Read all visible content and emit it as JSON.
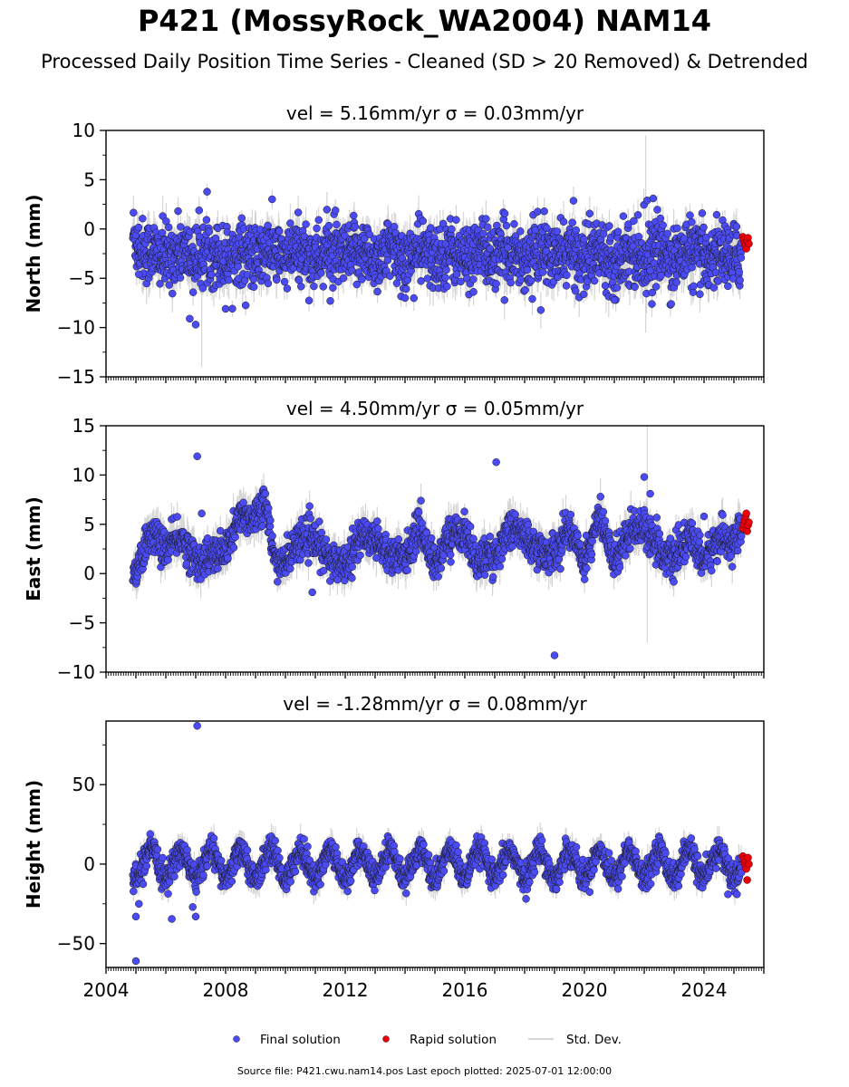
{
  "title": "P421 (MossyRock_WA2004) NAM14",
  "subtitle": "Processed Daily Position Time Series - Cleaned (SD > 20 Removed) & Detrended",
  "footer": "Source file: P421.cwu.nam14.pos  Last epoch plotted: 2025-07-01 12:00:00",
  "colors": {
    "final": "#4b4bf5",
    "rapid": "#e8000b",
    "stddev": "#c8c8c8",
    "marker_edge": "#1a1a1a"
  },
  "legend": {
    "placement": "bottom-center",
    "final_label": "Final solution",
    "rapid_label": "Rapid solution",
    "stddev_label": "Std. Dev."
  },
  "chart_data": [
    {
      "type": "scatter",
      "title": "vel = 5.16mm/yr   σ = 0.03mm/yr",
      "ylabel": "North (mm)",
      "xlim": [
        2004.0,
        2026.0
      ],
      "ylim": [
        -15,
        10
      ],
      "yticks": [
        -15,
        -10,
        -5,
        0,
        5,
        10
      ],
      "xticks": [
        2004,
        2008,
        2012,
        2016,
        2020,
        2024
      ],
      "xtick_labels_shown": false,
      "series_final": {
        "time_range": [
          2004.9,
          2025.25
        ],
        "center": -2.6,
        "spread": 1.6,
        "annual_amp": 0.4,
        "sd": 1.4
      },
      "series_rapid": {
        "time_range": [
          2025.3,
          2025.5
        ],
        "values": [
          -0.8,
          -1.1,
          -1.4,
          -1.7,
          -2.0,
          -1.2,
          -0.9,
          -1.5
        ]
      },
      "initial_offset": 2.5,
      "outliers": [
        [
          2007.0,
          -9.7
        ],
        [
          2006.8,
          -9.1
        ],
        [
          2008.0,
          -8.1
        ],
        [
          2011.5,
          -7.3
        ],
        [
          2014.0,
          -7.0
        ],
        [
          2021.0,
          -7.2
        ],
        [
          2022.9,
          -7.6
        ],
        [
          2022.1,
          2.9
        ],
        [
          2022.3,
          3.1
        ],
        [
          2021.3,
          1.3
        ],
        [
          2024.8,
          -5.8
        ],
        [
          2005.1,
          -4.6
        ]
      ],
      "big_errors": [
        [
          2022.05,
          -0.5,
          10.0
        ],
        [
          2007.2,
          -9.0,
          5.0
        ]
      ]
    },
    {
      "type": "scatter",
      "title": "vel = 4.50mm/yr   σ = 0.05mm/yr",
      "ylabel": "East (mm)",
      "xlim": [
        2004.0,
        2026.0
      ],
      "ylim": [
        -10,
        15
      ],
      "yticks": [
        -10,
        -5,
        0,
        5,
        10,
        15
      ],
      "xticks": [
        2004,
        2008,
        2012,
        2016,
        2020,
        2024
      ],
      "xtick_labels_shown": false,
      "series_final": {
        "time_range": [
          2004.9,
          2025.25
        ],
        "center": 2.8,
        "spread": 0.9,
        "annual_amp": 0.6,
        "sd": 1.3
      },
      "series_rapid": {
        "time_range": [
          2025.3,
          2025.5
        ],
        "values": [
          4.6,
          5.0,
          5.4,
          5.8,
          6.1,
          4.3,
          4.9,
          5.2
        ]
      },
      "wander": [
        [
          2004.9,
          0.5
        ],
        [
          2005.5,
          3.5
        ],
        [
          2006.5,
          3.0
        ],
        [
          2007.5,
          1.0
        ],
        [
          2008.5,
          5.0
        ],
        [
          2009.3,
          7.5
        ],
        [
          2009.6,
          1.0
        ],
        [
          2010.5,
          3.0
        ],
        [
          2011.0,
          4.0
        ],
        [
          2011.5,
          0.5
        ],
        [
          2012.5,
          3.0
        ],
        [
          2013.0,
          4.5
        ],
        [
          2013.5,
          1.0
        ],
        [
          2014.5,
          4.0
        ],
        [
          2015.0,
          1.5
        ],
        [
          2016.0,
          5.0
        ],
        [
          2016.4,
          0.5
        ],
        [
          2017.5,
          4.0
        ],
        [
          2018.0,
          4.5
        ],
        [
          2018.5,
          1.5
        ],
        [
          2019.5,
          4.0
        ],
        [
          2020.0,
          2.0
        ],
        [
          2020.5,
          5.0
        ],
        [
          2021.0,
          2.0
        ],
        [
          2022.0,
          5.5
        ],
        [
          2022.6,
          1.5
        ],
        [
          2023.5,
          3.0
        ],
        [
          2024.0,
          2.0
        ],
        [
          2025.3,
          4.5
        ]
      ],
      "outliers": [
        [
          2007.05,
          11.9
        ],
        [
          2017.05,
          11.3
        ],
        [
          2019.0,
          -8.3
        ],
        [
          2022.0,
          9.8
        ],
        [
          2022.2,
          8.1
        ],
        [
          2024.0,
          5.8
        ],
        [
          2010.9,
          -1.9
        ],
        [
          2007.2,
          6.1
        ]
      ],
      "big_errors": [
        [
          2022.1,
          4.0,
          11.0
        ]
      ]
    },
    {
      "type": "scatter",
      "title": "vel = -1.28mm/yr   σ = 0.08mm/yr",
      "ylabel": "Height (mm)",
      "xlim": [
        2004.0,
        2026.0
      ],
      "ylim": [
        -65,
        90
      ],
      "yticks": [
        -50,
        0,
        50
      ],
      "xticks": [
        2004,
        2008,
        2012,
        2016,
        2020,
        2024
      ],
      "xtick_labels": [
        "2004",
        "2008",
        "2012",
        "2016",
        "2020",
        "2024"
      ],
      "xtick_labels_shown": true,
      "series_final": {
        "time_range": [
          2004.9,
          2025.25
        ],
        "center": 0.0,
        "spread": 4.0,
        "annual_amp": 9.0,
        "sd": 6.0
      },
      "series_rapid": {
        "time_range": [
          2025.3,
          2025.5
        ],
        "values": [
          5.0,
          3.0,
          1.0,
          -1.0,
          -3.0,
          -10.0,
          4.0,
          0.0
        ]
      },
      "outliers": [
        [
          2007.05,
          87.0
        ],
        [
          2005.0,
          -61.0
        ],
        [
          2005.0,
          -33.0
        ],
        [
          2006.2,
          -34.5
        ],
        [
          2007.0,
          -33.0
        ],
        [
          2005.1,
          -25.0
        ],
        [
          2006.9,
          -27.0
        ],
        [
          2024.8,
          -19.0
        ],
        [
          2025.1,
          -19.0
        ]
      ],
      "big_errors": []
    }
  ]
}
